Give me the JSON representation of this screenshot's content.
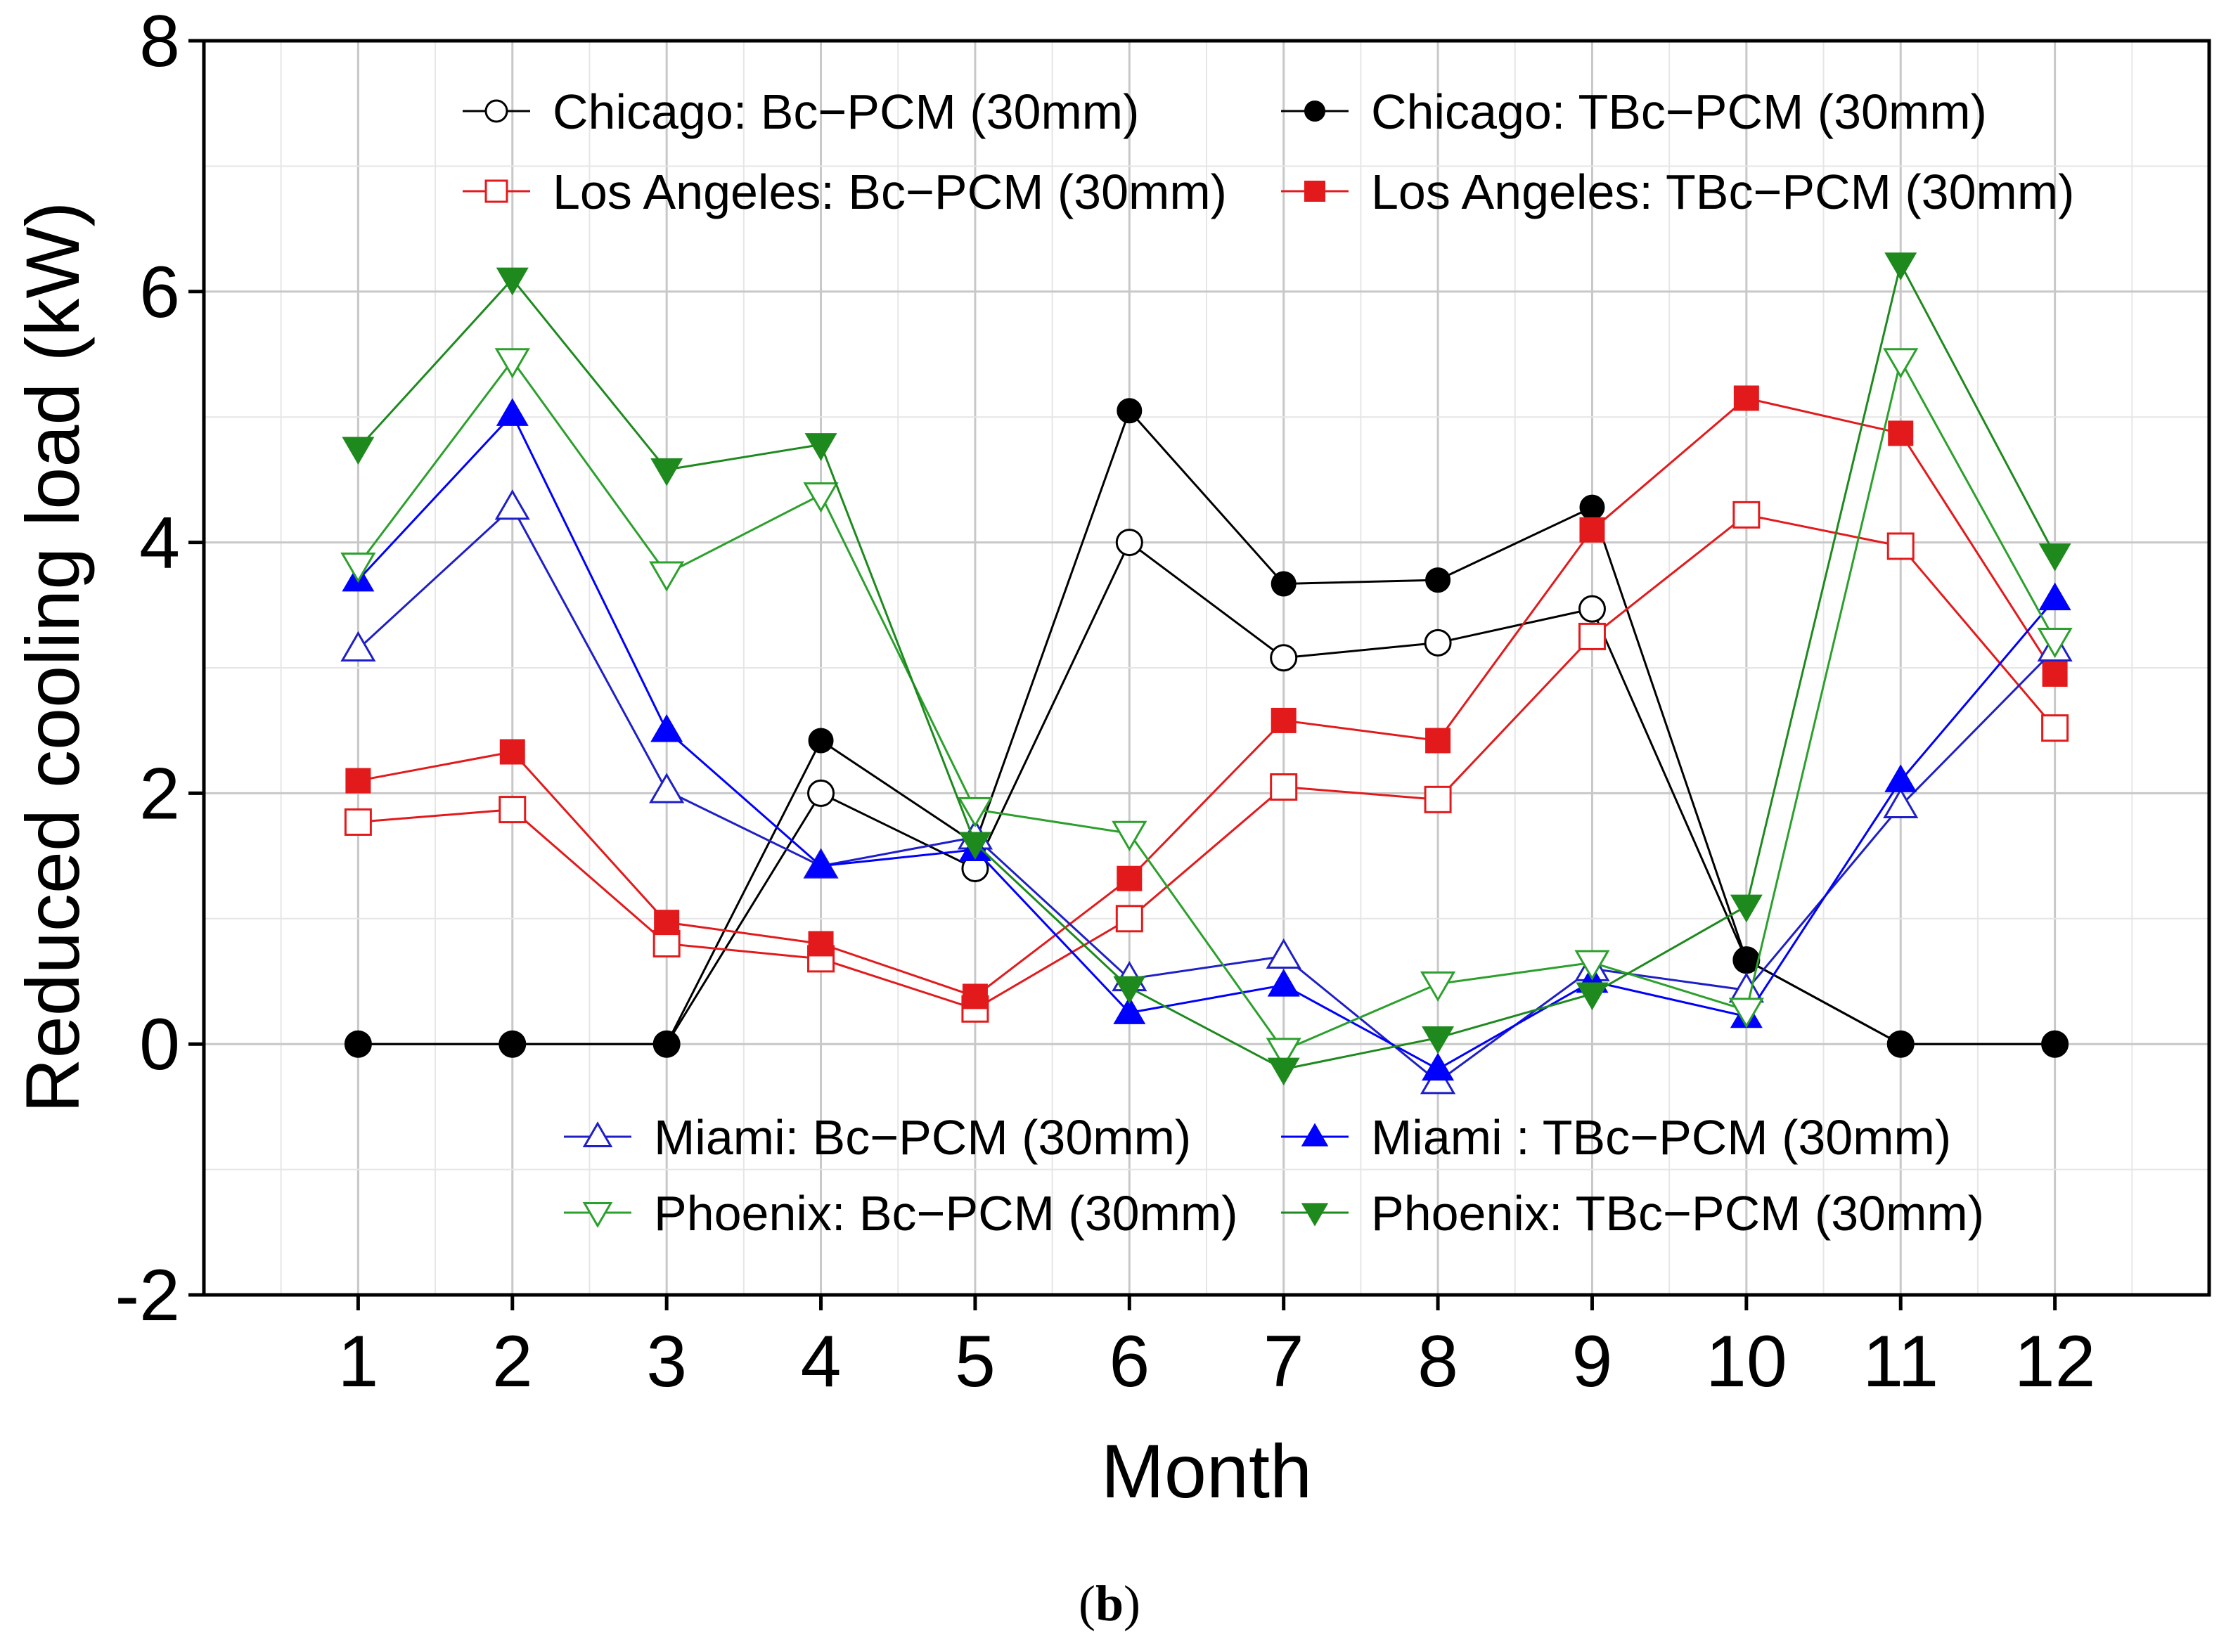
{
  "chart_data": {
    "type": "line",
    "xlabel": "Month",
    "ylabel": "Reduced cooling load (kW)",
    "x": [
      1,
      2,
      3,
      4,
      5,
      6,
      7,
      8,
      9,
      10,
      11,
      12
    ],
    "xticks": [
      "1",
      "2",
      "3",
      "4",
      "5",
      "6",
      "7",
      "8",
      "9",
      "10",
      "11",
      "12"
    ],
    "ylim": [
      -2,
      8
    ],
    "xlim": [
      0,
      13
    ],
    "yticks": [
      "-2",
      "0",
      "2",
      "4",
      "6",
      "8"
    ],
    "grid": true,
    "series": [
      {
        "name": "Chicago: Bc−PCM (30mm)",
        "color": "#000000",
        "marker": "circle",
        "filled": false,
        "values": [
          0,
          0,
          0,
          2.0,
          1.4,
          4.0,
          3.08,
          3.2,
          3.47,
          0.67,
          0,
          0
        ]
      },
      {
        "name": "Chicago: TBc−PCM (30mm)",
        "color": "#000000",
        "marker": "circle",
        "filled": true,
        "values": [
          0,
          0,
          0,
          2.42,
          1.6,
          5.05,
          3.67,
          3.7,
          4.28,
          0.67,
          0,
          0
        ]
      },
      {
        "name": "Los Angeles: Bc−PCM (30mm)",
        "color": "#e31a1c",
        "marker": "square",
        "filled": false,
        "values": [
          1.77,
          1.87,
          0.8,
          0.68,
          0.28,
          1.0,
          2.05,
          1.95,
          3.25,
          4.22,
          3.97,
          2.52
        ]
      },
      {
        "name": "Los Angeles: TBc−PCM (30mm)",
        "color": "#e31a1c",
        "marker": "square",
        "filled": true,
        "values": [
          2.1,
          2.33,
          0.97,
          0.8,
          0.38,
          1.32,
          2.58,
          2.42,
          4.1,
          5.15,
          4.87,
          2.95
        ]
      },
      {
        "name": "Miami: Bc−PCM (30mm)",
        "color": "#1f1fc8",
        "marker": "triangle-up",
        "filled": false,
        "values": [
          3.15,
          4.28,
          2.02,
          1.42,
          1.65,
          0.52,
          0.7,
          -0.3,
          0.6,
          0.43,
          1.9,
          3.15
        ]
      },
      {
        "name": "Miami : TBc−PCM (30mm)",
        "color": "#0000ff",
        "marker": "triangle-up",
        "filled": true,
        "values": [
          3.7,
          5.02,
          2.5,
          1.42,
          1.55,
          0.25,
          0.47,
          -0.2,
          0.5,
          0.22,
          2.1,
          3.55
        ]
      },
      {
        "name": "Phoenix: Bc−PCM (30mm)",
        "color": "#2ca02c",
        "marker": "triangle-down",
        "filled": false,
        "values": [
          3.82,
          5.45,
          3.75,
          4.38,
          1.87,
          1.68,
          -0.05,
          0.48,
          0.65,
          0.27,
          5.45,
          3.22
        ]
      },
      {
        "name": "Phoenix: TBc−PCM (30mm)",
        "color": "#1e8a1e",
        "marker": "triangle-down",
        "filled": true,
        "values": [
          4.75,
          6.1,
          4.58,
          4.78,
          1.6,
          0.45,
          -0.2,
          0.05,
          0.4,
          1.1,
          6.22,
          3.9
        ]
      }
    ]
  },
  "panel_label": "(b)"
}
